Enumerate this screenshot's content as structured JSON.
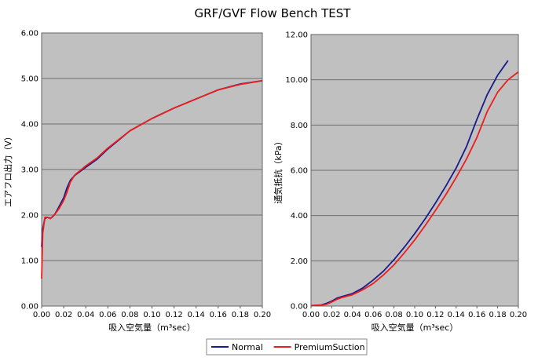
{
  "title": "GRF/GVF Flow Bench TEST",
  "chart_data": [
    {
      "type": "line",
      "xlabel": "吸入空気量（m³sec）",
      "ylabel": "エアフロ出力（V）",
      "xlim": [
        0,
        0.2
      ],
      "ylim": [
        0,
        6
      ],
      "x_ticks": [
        "0.00",
        "0.02",
        "0.04",
        "0.06",
        "0.08",
        "0.10",
        "0.12",
        "0.14",
        "0.16",
        "0.18",
        "0.20"
      ],
      "y_ticks": [
        "0.00",
        "1.00",
        "2.00",
        "3.00",
        "4.00",
        "5.00",
        "6.00"
      ],
      "grid": true,
      "series": [
        {
          "name": "Normal",
          "color": "#1a1a8c",
          "points": [
            [
              0,
              1.3
            ],
            [
              0.001,
              1.7
            ],
            [
              0.003,
              1.92
            ],
            [
              0.005,
              1.95
            ],
            [
              0.008,
              1.93
            ],
            [
              0.01,
              1.96
            ],
            [
              0.012,
              2.02
            ],
            [
              0.015,
              2.15
            ],
            [
              0.02,
              2.38
            ],
            [
              0.023,
              2.6
            ],
            [
              0.026,
              2.76
            ],
            [
              0.03,
              2.87
            ],
            [
              0.04,
              3.05
            ],
            [
              0.05,
              3.22
            ],
            [
              0.06,
              3.45
            ],
            [
              0.08,
              3.85
            ],
            [
              0.1,
              4.12
            ],
            [
              0.12,
              4.35
            ],
            [
              0.14,
              4.55
            ],
            [
              0.16,
              4.75
            ],
            [
              0.18,
              4.88
            ],
            [
              0.2,
              4.95
            ]
          ]
        },
        {
          "name": "PremiumSuction",
          "color": "#ee1c1c",
          "points": [
            [
              0,
              0.6
            ],
            [
              0.001,
              1.6
            ],
            [
              0.003,
              1.95
            ],
            [
              0.005,
              1.95
            ],
            [
              0.008,
              1.92
            ],
            [
              0.01,
              1.97
            ],
            [
              0.013,
              2.05
            ],
            [
              0.016,
              2.15
            ],
            [
              0.02,
              2.32
            ],
            [
              0.023,
              2.5
            ],
            [
              0.026,
              2.72
            ],
            [
              0.03,
              2.88
            ],
            [
              0.04,
              3.08
            ],
            [
              0.05,
              3.25
            ],
            [
              0.06,
              3.47
            ],
            [
              0.08,
              3.85
            ],
            [
              0.1,
              4.12
            ],
            [
              0.12,
              4.35
            ],
            [
              0.14,
              4.55
            ],
            [
              0.16,
              4.75
            ],
            [
              0.18,
              4.87
            ],
            [
              0.2,
              4.95
            ]
          ]
        }
      ]
    },
    {
      "type": "line",
      "xlabel": "吸入空気量（m³sec）",
      "ylabel": "通気抵抗（kPa）",
      "xlim": [
        0,
        0.2
      ],
      "ylim": [
        0,
        12
      ],
      "x_ticks": [
        "0.00",
        "0.02",
        "0.04",
        "0.06",
        "0.08",
        "0.10",
        "0.12",
        "0.14",
        "0.16",
        "0.18",
        "0.20"
      ],
      "y_ticks": [
        "0.00",
        "2.00",
        "4.00",
        "6.00",
        "8.00",
        "10.00",
        "12.00"
      ],
      "grid": true,
      "series": [
        {
          "name": "Normal",
          "color": "#1a1a8c",
          "points": [
            [
              0,
              0.02
            ],
            [
              0.01,
              0.05
            ],
            [
              0.015,
              0.12
            ],
            [
              0.02,
              0.22
            ],
            [
              0.025,
              0.35
            ],
            [
              0.03,
              0.42
            ],
            [
              0.04,
              0.55
            ],
            [
              0.05,
              0.8
            ],
            [
              0.06,
              1.15
            ],
            [
              0.07,
              1.55
            ],
            [
              0.08,
              2.05
            ],
            [
              0.09,
              2.6
            ],
            [
              0.1,
              3.2
            ],
            [
              0.11,
              3.85
            ],
            [
              0.12,
              4.55
            ],
            [
              0.13,
              5.3
            ],
            [
              0.14,
              6.1
            ],
            [
              0.15,
              7.05
            ],
            [
              0.16,
              8.25
            ],
            [
              0.17,
              9.35
            ],
            [
              0.18,
              10.2
            ],
            [
              0.19,
              10.85
            ]
          ]
        },
        {
          "name": "PremiumSuction",
          "color": "#ee1c1c",
          "points": [
            [
              0,
              0.02
            ],
            [
              0.01,
              0.04
            ],
            [
              0.015,
              0.08
            ],
            [
              0.02,
              0.18
            ],
            [
              0.025,
              0.3
            ],
            [
              0.03,
              0.38
            ],
            [
              0.04,
              0.5
            ],
            [
              0.05,
              0.72
            ],
            [
              0.06,
              1.0
            ],
            [
              0.07,
              1.38
            ],
            [
              0.08,
              1.82
            ],
            [
              0.09,
              2.35
            ],
            [
              0.1,
              2.92
            ],
            [
              0.11,
              3.55
            ],
            [
              0.12,
              4.22
            ],
            [
              0.13,
              4.92
            ],
            [
              0.14,
              5.68
            ],
            [
              0.15,
              6.5
            ],
            [
              0.16,
              7.45
            ],
            [
              0.17,
              8.6
            ],
            [
              0.18,
              9.45
            ],
            [
              0.19,
              10.0
            ],
            [
              0.2,
              10.35
            ]
          ]
        }
      ]
    }
  ],
  "legend": {
    "items": [
      {
        "name": "Normal",
        "color": "#1a1a8c"
      },
      {
        "name": "PremiumSuction",
        "color": "#ee1c1c"
      }
    ]
  }
}
